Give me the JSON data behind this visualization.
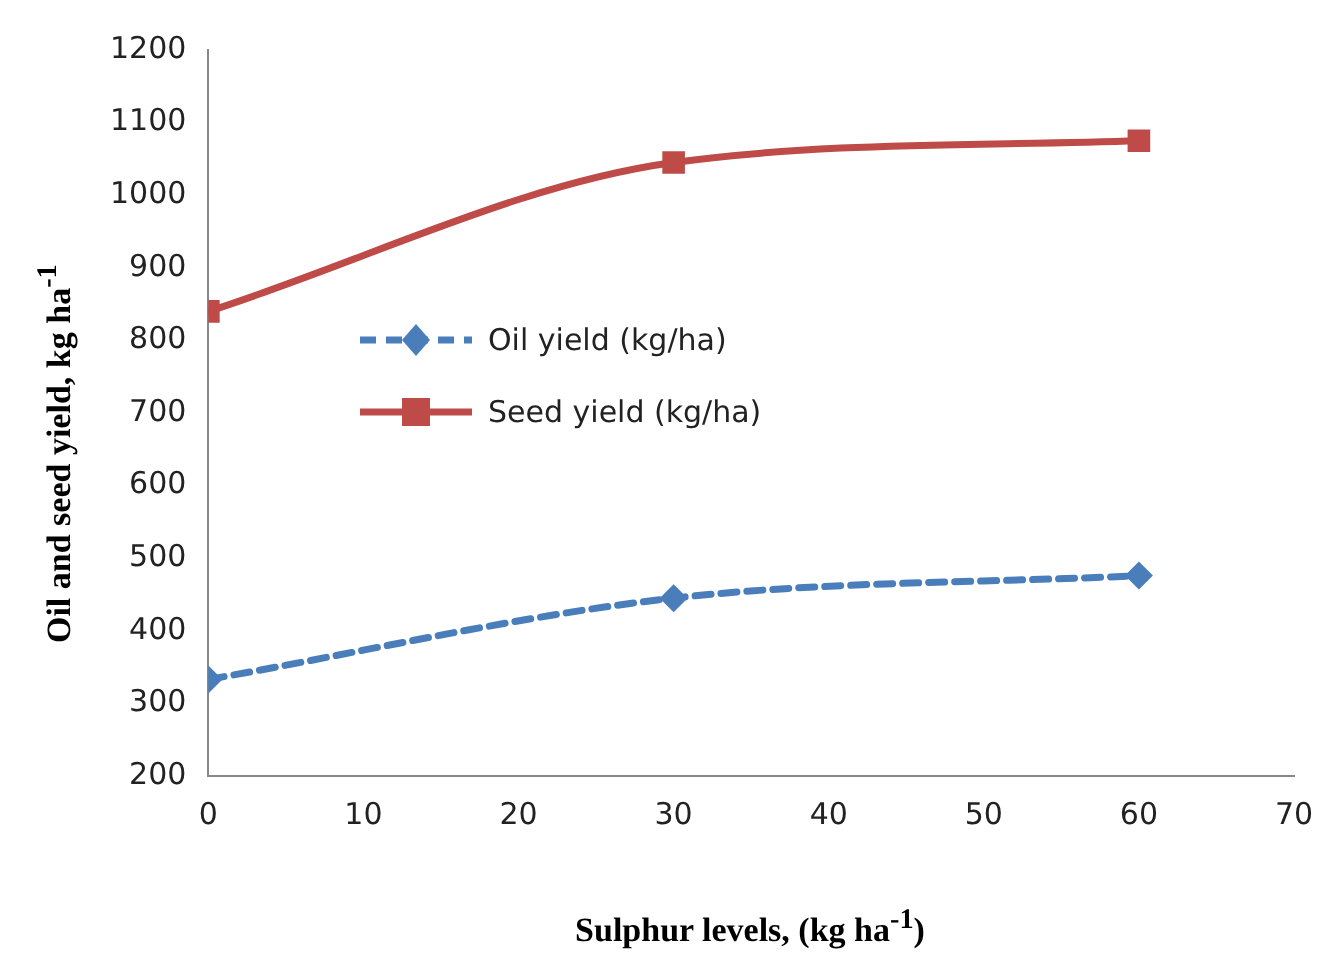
{
  "chart_data": {
    "type": "line",
    "xlabel": "Sulphur levels, (kg ha$^{-1}$)",
    "ylabel": "Oil and seed yield, kg ha$^{-1}$",
    "x": [
      0,
      30,
      60
    ],
    "xlim": [
      0,
      70
    ],
    "xticks": [
      0,
      10,
      20,
      30,
      40,
      50,
      60,
      70
    ],
    "ylim": [
      200,
      1200
    ],
    "yticks": [
      200,
      300,
      400,
      500,
      600,
      700,
      800,
      900,
      1000,
      1100,
      1200
    ],
    "grid": false,
    "legend": "left",
    "series": [
      {
        "name": "Oil yield (kg/ha)",
        "color": "#4a7ebb",
        "values": [
          333,
          445,
          476
        ],
        "marker": "diamond",
        "line_style": "dashed"
      },
      {
        "name": "Seed yield (kg/ha)",
        "color": "#be4b48",
        "values": [
          840,
          1045,
          1075
        ],
        "marker": "square",
        "line_style": "solid"
      }
    ]
  }
}
